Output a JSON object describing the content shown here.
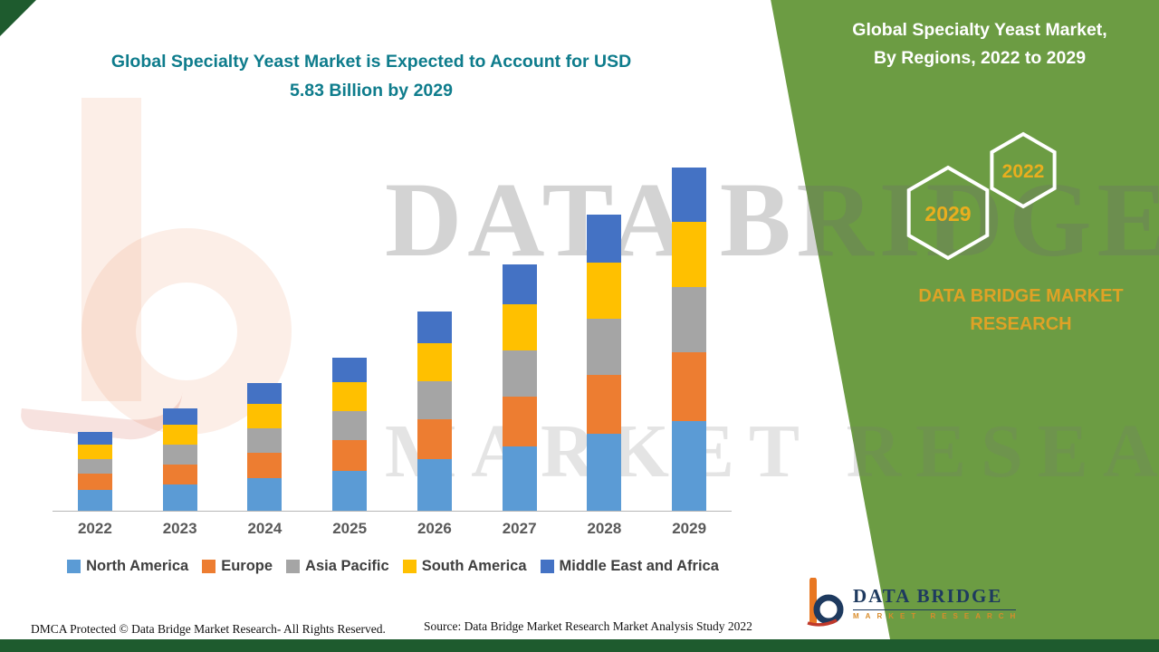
{
  "page": {
    "main_title_line1": "Global Specialty Yeast Market is Expected to Account for USD",
    "main_title_line2": "5.83 Billion by 2029",
    "panel": {
      "title_line1": "Global Specialty Yeast Market,",
      "title_line2": "By Regions, 2022 to 2029",
      "hex_year_top": "2022",
      "hex_year_bottom": "2029",
      "brand_line1": "DATA BRIDGE MARKET",
      "brand_line2": "RESEARCH",
      "panel_green": "#6c9c43",
      "dark_green": "#1e5b2e",
      "accent_yellow": "#eaae1e",
      "title_teal": "#0e7c8c"
    },
    "watermark": {
      "line1": "DATA BRIDGE",
      "line2": "MARKET RESEARCH"
    },
    "footer": {
      "dmca": "DMCA Protected © Data Bridge Market Research- All Rights Reserved.",
      "source": "Source: Data Bridge Market Research Market Analysis Study 2022"
    },
    "logo": {
      "name": "DATA BRIDGE",
      "tagline": "MARKET RESEARCH"
    }
  },
  "chart_data": {
    "type": "bar",
    "stacked": true,
    "title": "Global Specialty Yeast Market is Expected to Account for USD 5.83 Billion by 2029",
    "unit": "USD Billion",
    "categories": [
      "2022",
      "2023",
      "2024",
      "2025",
      "2026",
      "2027",
      "2028",
      "2029"
    ],
    "series": [
      {
        "name": "North America",
        "color": "#5b9bd5",
        "values": [
          0.35,
          0.45,
          0.56,
          0.67,
          0.87,
          1.09,
          1.3,
          1.52
        ]
      },
      {
        "name": "Europe",
        "color": "#ed7d31",
        "values": [
          0.27,
          0.34,
          0.43,
          0.52,
          0.67,
          0.84,
          1.0,
          1.17
        ]
      },
      {
        "name": "Asia Pacific",
        "color": "#a5a5a5",
        "values": [
          0.25,
          0.33,
          0.41,
          0.49,
          0.64,
          0.79,
          0.95,
          1.11
        ]
      },
      {
        "name": "South America",
        "color": "#ffc000",
        "values": [
          0.25,
          0.33,
          0.41,
          0.49,
          0.64,
          0.79,
          0.95,
          1.11
        ]
      },
      {
        "name": "Middle East and Africa",
        "color": "#4472c4",
        "values": [
          0.21,
          0.27,
          0.36,
          0.41,
          0.54,
          0.67,
          0.81,
          0.92
        ]
      }
    ],
    "totals": [
      1.33,
      1.72,
      2.17,
      2.58,
      3.36,
      4.18,
      5.01,
      5.83
    ],
    "ylim": [
      0,
      6.2
    ],
    "grid": false,
    "y_axis_visible": false,
    "legend_position": "bottom"
  }
}
